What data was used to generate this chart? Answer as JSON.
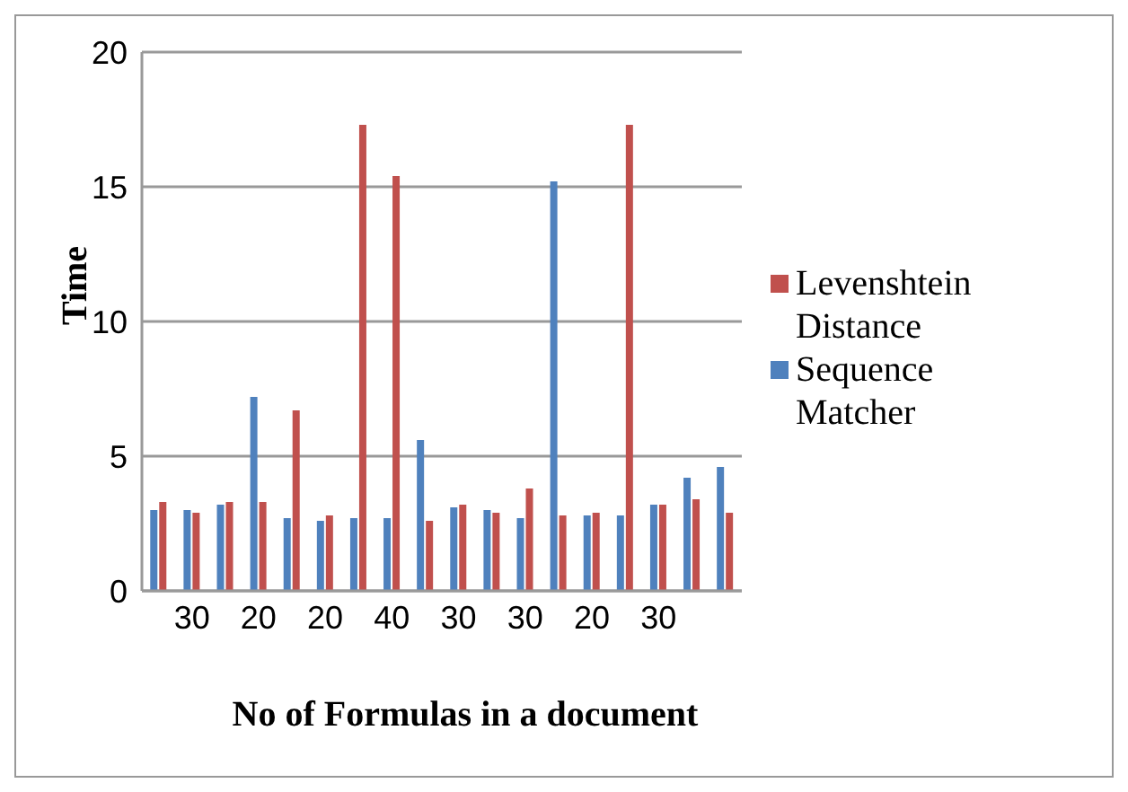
{
  "chart_data": {
    "type": "bar",
    "xlabel": "No of Formulas in a document",
    "ylabel": "Time",
    "categories": [
      null,
      "30",
      null,
      "20",
      null,
      "20",
      null,
      "40",
      null,
      "30",
      null,
      "30",
      null,
      "20",
      null,
      "30",
      null,
      null
    ],
    "series": [
      {
        "name": "Sequence Matcher",
        "color": "#4f81bd",
        "values": [
          3.0,
          3.0,
          3.2,
          7.2,
          2.7,
          2.6,
          2.7,
          2.7,
          5.6,
          3.1,
          3.0,
          2.7,
          15.2,
          2.8,
          2.8,
          3.2,
          4.2,
          4.6
        ]
      },
      {
        "name": "Levenshtein Distance",
        "color": "#c0504d",
        "values": [
          3.3,
          2.9,
          3.3,
          3.3,
          6.7,
          2.8,
          17.3,
          15.4,
          2.6,
          3.2,
          2.9,
          3.8,
          2.8,
          2.9,
          17.3,
          3.2,
          3.4,
          2.9
        ]
      }
    ],
    "ylim": [
      0,
      20
    ],
    "yticks": [
      0,
      5,
      10,
      15,
      20
    ],
    "grid": "y",
    "legend": "right"
  }
}
